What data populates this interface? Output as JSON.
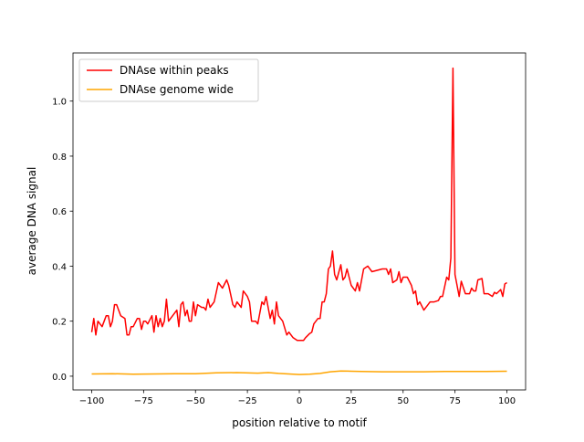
{
  "chart_data": {
    "type": "line",
    "title": "",
    "xlabel": "position relative to motif",
    "ylabel": "average DNA signal",
    "xlim": [
      -109,
      109
    ],
    "ylim": [
      -0.05,
      1.175
    ],
    "xticks": [
      -100,
      -75,
      -50,
      -25,
      0,
      25,
      50,
      75,
      100
    ],
    "xtick_labels": [
      "−100",
      "−75",
      "−50",
      "−25",
      "0",
      "25",
      "50",
      "75",
      "100"
    ],
    "yticks": [
      0.0,
      0.2,
      0.4,
      0.6,
      0.8,
      1.0
    ],
    "ytick_labels": [
      "0.0",
      "0.2",
      "0.4",
      "0.6",
      "0.8",
      "1.0"
    ],
    "grid": false,
    "legend_position": "top-left",
    "series": [
      {
        "name": "DNAse within peaks",
        "color": "#ff0000",
        "x": [
          -100,
          -99,
          -98,
          -97,
          -95,
          -93,
          -92,
          -91,
          -90,
          -89,
          -88,
          -86,
          -84,
          -83,
          -82,
          -81,
          -80,
          -78,
          -77,
          -76,
          -75,
          -74,
          -73,
          -71,
          -70,
          -69,
          -68,
          -67,
          -66,
          -65,
          -64,
          -63,
          -61,
          -59,
          -58,
          -57,
          -56,
          -55,
          -54,
          -53,
          -52,
          -51,
          -50,
          -49,
          -47,
          -46,
          -45,
          -44,
          -43,
          -41,
          -39,
          -37,
          -35,
          -34,
          -32,
          -31,
          -30,
          -28,
          -27,
          -25,
          -24,
          -23,
          -21,
          -20,
          -18,
          -17,
          -16,
          -14,
          -13,
          -12,
          -11,
          -10,
          -8,
          -6,
          -5,
          -3,
          -1,
          1,
          2,
          3,
          5,
          6,
          7,
          9,
          10,
          11,
          12,
          13,
          14,
          15,
          16,
          17,
          18,
          20,
          21,
          22,
          23,
          25,
          27,
          28,
          29,
          31,
          33,
          35,
          40,
          42,
          43,
          44,
          45,
          47,
          48,
          49,
          50,
          52,
          54,
          55,
          56,
          57,
          58,
          60,
          62,
          63,
          65,
          67,
          68,
          69,
          71,
          72,
          73,
          74,
          75,
          77,
          78,
          80,
          82,
          83,
          84,
          85,
          86,
          88,
          89,
          91,
          93,
          94,
          95,
          97,
          98,
          99,
          100
        ],
        "y": [
          0.16,
          0.21,
          0.15,
          0.2,
          0.18,
          0.22,
          0.22,
          0.18,
          0.2,
          0.26,
          0.26,
          0.22,
          0.21,
          0.15,
          0.15,
          0.18,
          0.18,
          0.21,
          0.21,
          0.17,
          0.2,
          0.2,
          0.19,
          0.22,
          0.16,
          0.22,
          0.18,
          0.21,
          0.18,
          0.2,
          0.28,
          0.2,
          0.22,
          0.24,
          0.18,
          0.26,
          0.27,
          0.22,
          0.24,
          0.2,
          0.2,
          0.27,
          0.22,
          0.26,
          0.25,
          0.25,
          0.24,
          0.28,
          0.25,
          0.27,
          0.34,
          0.32,
          0.35,
          0.33,
          0.26,
          0.25,
          0.27,
          0.25,
          0.31,
          0.29,
          0.27,
          0.2,
          0.2,
          0.19,
          0.27,
          0.26,
          0.29,
          0.21,
          0.24,
          0.19,
          0.27,
          0.22,
          0.2,
          0.15,
          0.16,
          0.14,
          0.13,
          0.13,
          0.13,
          0.14,
          0.155,
          0.16,
          0.19,
          0.21,
          0.21,
          0.27,
          0.27,
          0.3,
          0.39,
          0.4,
          0.455,
          0.37,
          0.35,
          0.405,
          0.35,
          0.36,
          0.39,
          0.33,
          0.31,
          0.34,
          0.31,
          0.39,
          0.4,
          0.38,
          0.39,
          0.39,
          0.37,
          0.39,
          0.34,
          0.35,
          0.38,
          0.34,
          0.36,
          0.36,
          0.33,
          0.3,
          0.31,
          0.26,
          0.27,
          0.24,
          0.26,
          0.27,
          0.27,
          0.275,
          0.29,
          0.29,
          0.36,
          0.35,
          0.43,
          1.12,
          0.37,
          0.29,
          0.345,
          0.3,
          0.3,
          0.32,
          0.31,
          0.31,
          0.35,
          0.355,
          0.3,
          0.3,
          0.29,
          0.305,
          0.3,
          0.315,
          0.29,
          0.335,
          0.34
        ]
      },
      {
        "name": "DNAse genome wide",
        "color": "#ffa500",
        "x": [
          -100,
          -90,
          -80,
          -70,
          -60,
          -50,
          -40,
          -30,
          -20,
          -15,
          -10,
          -5,
          0,
          5,
          10,
          15,
          20,
          25,
          30,
          40,
          50,
          60,
          70,
          80,
          90,
          100
        ],
        "y": [
          0.008,
          0.009,
          0.007,
          0.008,
          0.009,
          0.009,
          0.012,
          0.013,
          0.011,
          0.013,
          0.01,
          0.008,
          0.006,
          0.007,
          0.01,
          0.016,
          0.019,
          0.018,
          0.017,
          0.016,
          0.016,
          0.016,
          0.017,
          0.017,
          0.017,
          0.018
        ]
      }
    ]
  }
}
